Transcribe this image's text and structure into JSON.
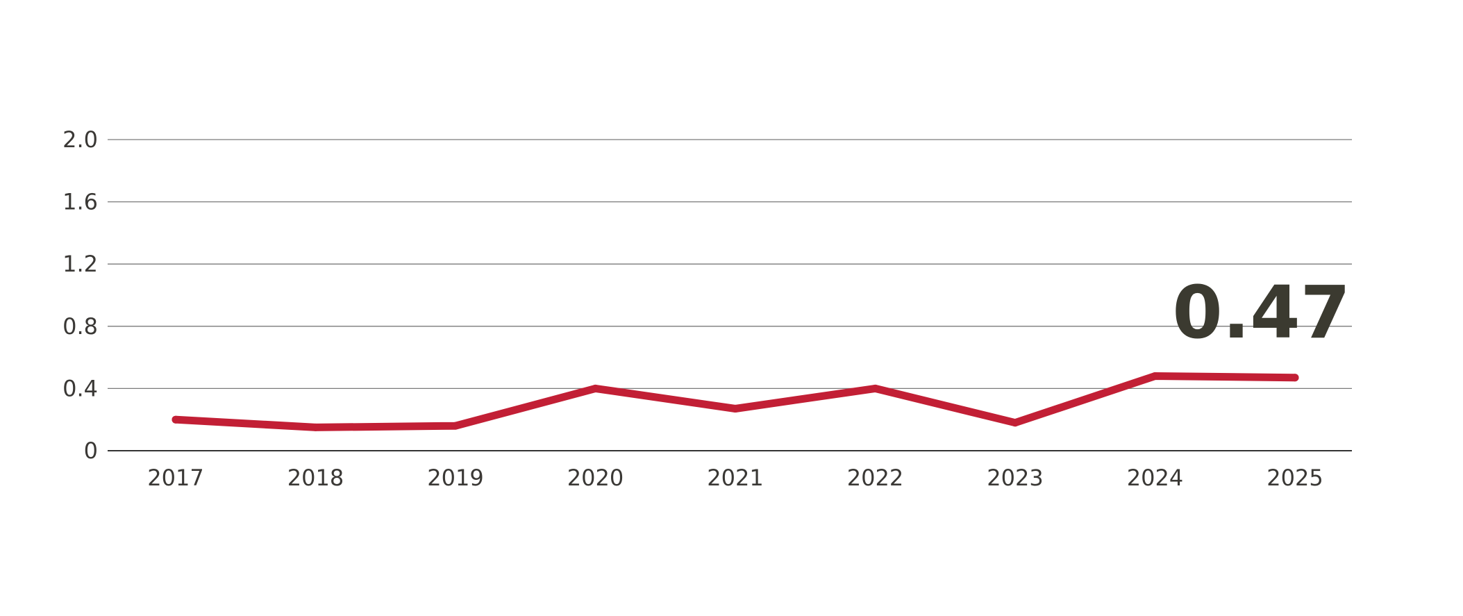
{
  "chart_data": {
    "type": "line",
    "x": [
      "2017",
      "2018",
      "2019",
      "2020",
      "2021",
      "2022",
      "2023",
      "2024",
      "2025"
    ],
    "series": [
      {
        "values": [
          0.2,
          0.15,
          0.16,
          0.4,
          0.27,
          0.4,
          0.18,
          0.48,
          0.47
        ]
      }
    ],
    "ylim": [
      0,
      2.0
    ],
    "yticks": [
      "0",
      "0.4",
      "0.8",
      "1.2",
      "1.6",
      "2.0"
    ],
    "grid": true,
    "legend": "none",
    "annotation": "0.47",
    "colors": {
      "line": "#c21f35",
      "callout": "#3b3a30"
    }
  }
}
